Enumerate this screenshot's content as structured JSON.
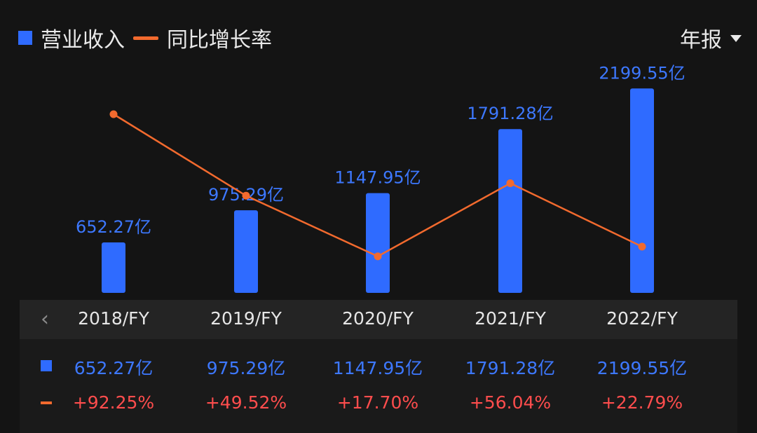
{
  "legend": {
    "revenue_label": "营业收入",
    "growth_label": "同比增长率"
  },
  "period_selector": {
    "value": "年报"
  },
  "colors": {
    "bar": "#2f6bff",
    "line": "#f26a2e",
    "growth_text": "#ff4d4d",
    "revenue_text": "#3d78ff"
  },
  "chart_data": {
    "type": "bar",
    "categories": [
      "2018/FY",
      "2019/FY",
      "2020/FY",
      "2021/FY",
      "2022/FY"
    ],
    "series": [
      {
        "name": "营业收入",
        "type": "bar",
        "values": [
          652.27,
          975.29,
          1147.95,
          1791.28,
          2199.55
        ],
        "labels": [
          "652.27亿",
          "975.29亿",
          "1147.95亿",
          "1791.28亿",
          "2199.55亿"
        ]
      },
      {
        "name": "同比增长率",
        "type": "line",
        "values": [
          92.25,
          49.52,
          17.7,
          56.04,
          22.79
        ],
        "labels": [
          "+92.25%",
          "+49.52%",
          "+17.70%",
          "+56.04%",
          "+22.79%"
        ]
      }
    ],
    "grid": false,
    "legend_position": "top-left"
  }
}
